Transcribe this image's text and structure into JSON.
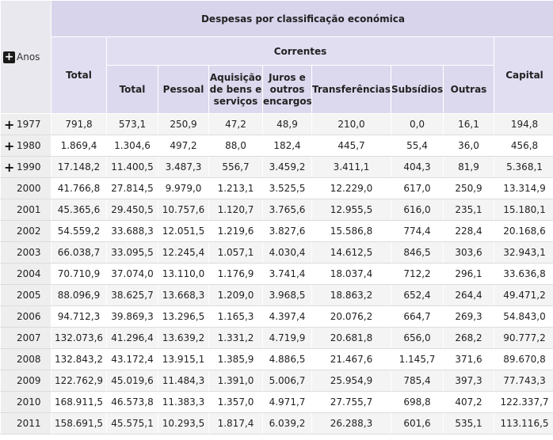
{
  "headers": {
    "top": "Despesas por classificação económica",
    "correntes": "Correntes",
    "total": "Total",
    "capital": "Capital",
    "anos": "Anos",
    "sub": [
      "Total",
      "Pessoal",
      "Aquisição de bens e serviços",
      "Juros e outros encargos",
      "Transferências",
      "Subsídios",
      "Outras"
    ]
  },
  "rows": [
    {
      "year": "1977",
      "expand": true,
      "v": [
        "791,8",
        "573,1",
        "250,9",
        "47,2",
        "48,9",
        "210,0",
        "0,0",
        "16,1",
        "194,8"
      ]
    },
    {
      "year": "1980",
      "expand": true,
      "v": [
        "1.869,4",
        "1.304,6",
        "497,2",
        "88,0",
        "182,4",
        "445,7",
        "55,4",
        "36,0",
        "456,8"
      ]
    },
    {
      "year": "1990",
      "expand": true,
      "v": [
        "17.148,2",
        "11.400,5",
        "3.487,3",
        "556,7",
        "3.459,2",
        "3.411,1",
        "404,3",
        "81,9",
        "5.368,1"
      ]
    },
    {
      "year": "2000",
      "expand": false,
      "v": [
        "41.766,8",
        "27.814,5",
        "9.979,0",
        "1.213,1",
        "3.525,5",
        "12.229,0",
        "617,0",
        "250,9",
        "13.314,9"
      ]
    },
    {
      "year": "2001",
      "expand": false,
      "v": [
        "45.365,6",
        "29.450,5",
        "10.757,6",
        "1.120,7",
        "3.765,6",
        "12.955,5",
        "616,0",
        "235,1",
        "15.180,1"
      ]
    },
    {
      "year": "2002",
      "expand": false,
      "v": [
        "54.559,2",
        "33.688,3",
        "12.051,5",
        "1.219,6",
        "3.827,6",
        "15.586,8",
        "774,4",
        "228,4",
        "20.168,6"
      ]
    },
    {
      "year": "2003",
      "expand": false,
      "v": [
        "66.038,7",
        "33.095,5",
        "12.245,4",
        "1.057,1",
        "4.030,4",
        "14.612,5",
        "846,5",
        "303,6",
        "32.943,1"
      ]
    },
    {
      "year": "2004",
      "expand": false,
      "v": [
        "70.710,9",
        "37.074,0",
        "13.110,0",
        "1.176,9",
        "3.741,4",
        "18.037,4",
        "712,2",
        "296,1",
        "33.636,8"
      ]
    },
    {
      "year": "2005",
      "expand": false,
      "v": [
        "88.096,9",
        "38.625,7",
        "13.668,3",
        "1.209,0",
        "3.968,5",
        "18.863,2",
        "652,4",
        "264,4",
        "49.471,2"
      ]
    },
    {
      "year": "2006",
      "expand": false,
      "v": [
        "94.712,3",
        "39.869,3",
        "13.296,5",
        "1.165,3",
        "4.397,4",
        "20.076,2",
        "664,7",
        "269,3",
        "54.843,0"
      ]
    },
    {
      "year": "2007",
      "expand": false,
      "v": [
        "132.073,6",
        "41.296,4",
        "13.639,2",
        "1.331,2",
        "4.719,9",
        "20.681,8",
        "656,0",
        "268,2",
        "90.777,2"
      ]
    },
    {
      "year": "2008",
      "expand": false,
      "v": [
        "132.843,2",
        "43.172,4",
        "13.915,1",
        "1.385,9",
        "4.886,5",
        "21.467,6",
        "1.145,7",
        "371,6",
        "89.670,8"
      ]
    },
    {
      "year": "2009",
      "expand": false,
      "v": [
        "122.762,9",
        "45.019,6",
        "11.484,3",
        "1.391,0",
        "5.006,7",
        "25.954,9",
        "785,4",
        "397,3",
        "77.743,3"
      ]
    },
    {
      "year": "2010",
      "expand": false,
      "v": [
        "168.911,5",
        "46.573,8",
        "11.383,3",
        "1.357,0",
        "4.971,7",
        "27.755,7",
        "698,8",
        "407,2",
        "122.337,7"
      ]
    },
    {
      "year": "2011",
      "expand": false,
      "v": [
        "158.691,5",
        "45.575,1",
        "10.293,5",
        "1.817,4",
        "6.039,2",
        "26.288,3",
        "601,6",
        "535,1",
        "113.116,5"
      ]
    }
  ]
}
